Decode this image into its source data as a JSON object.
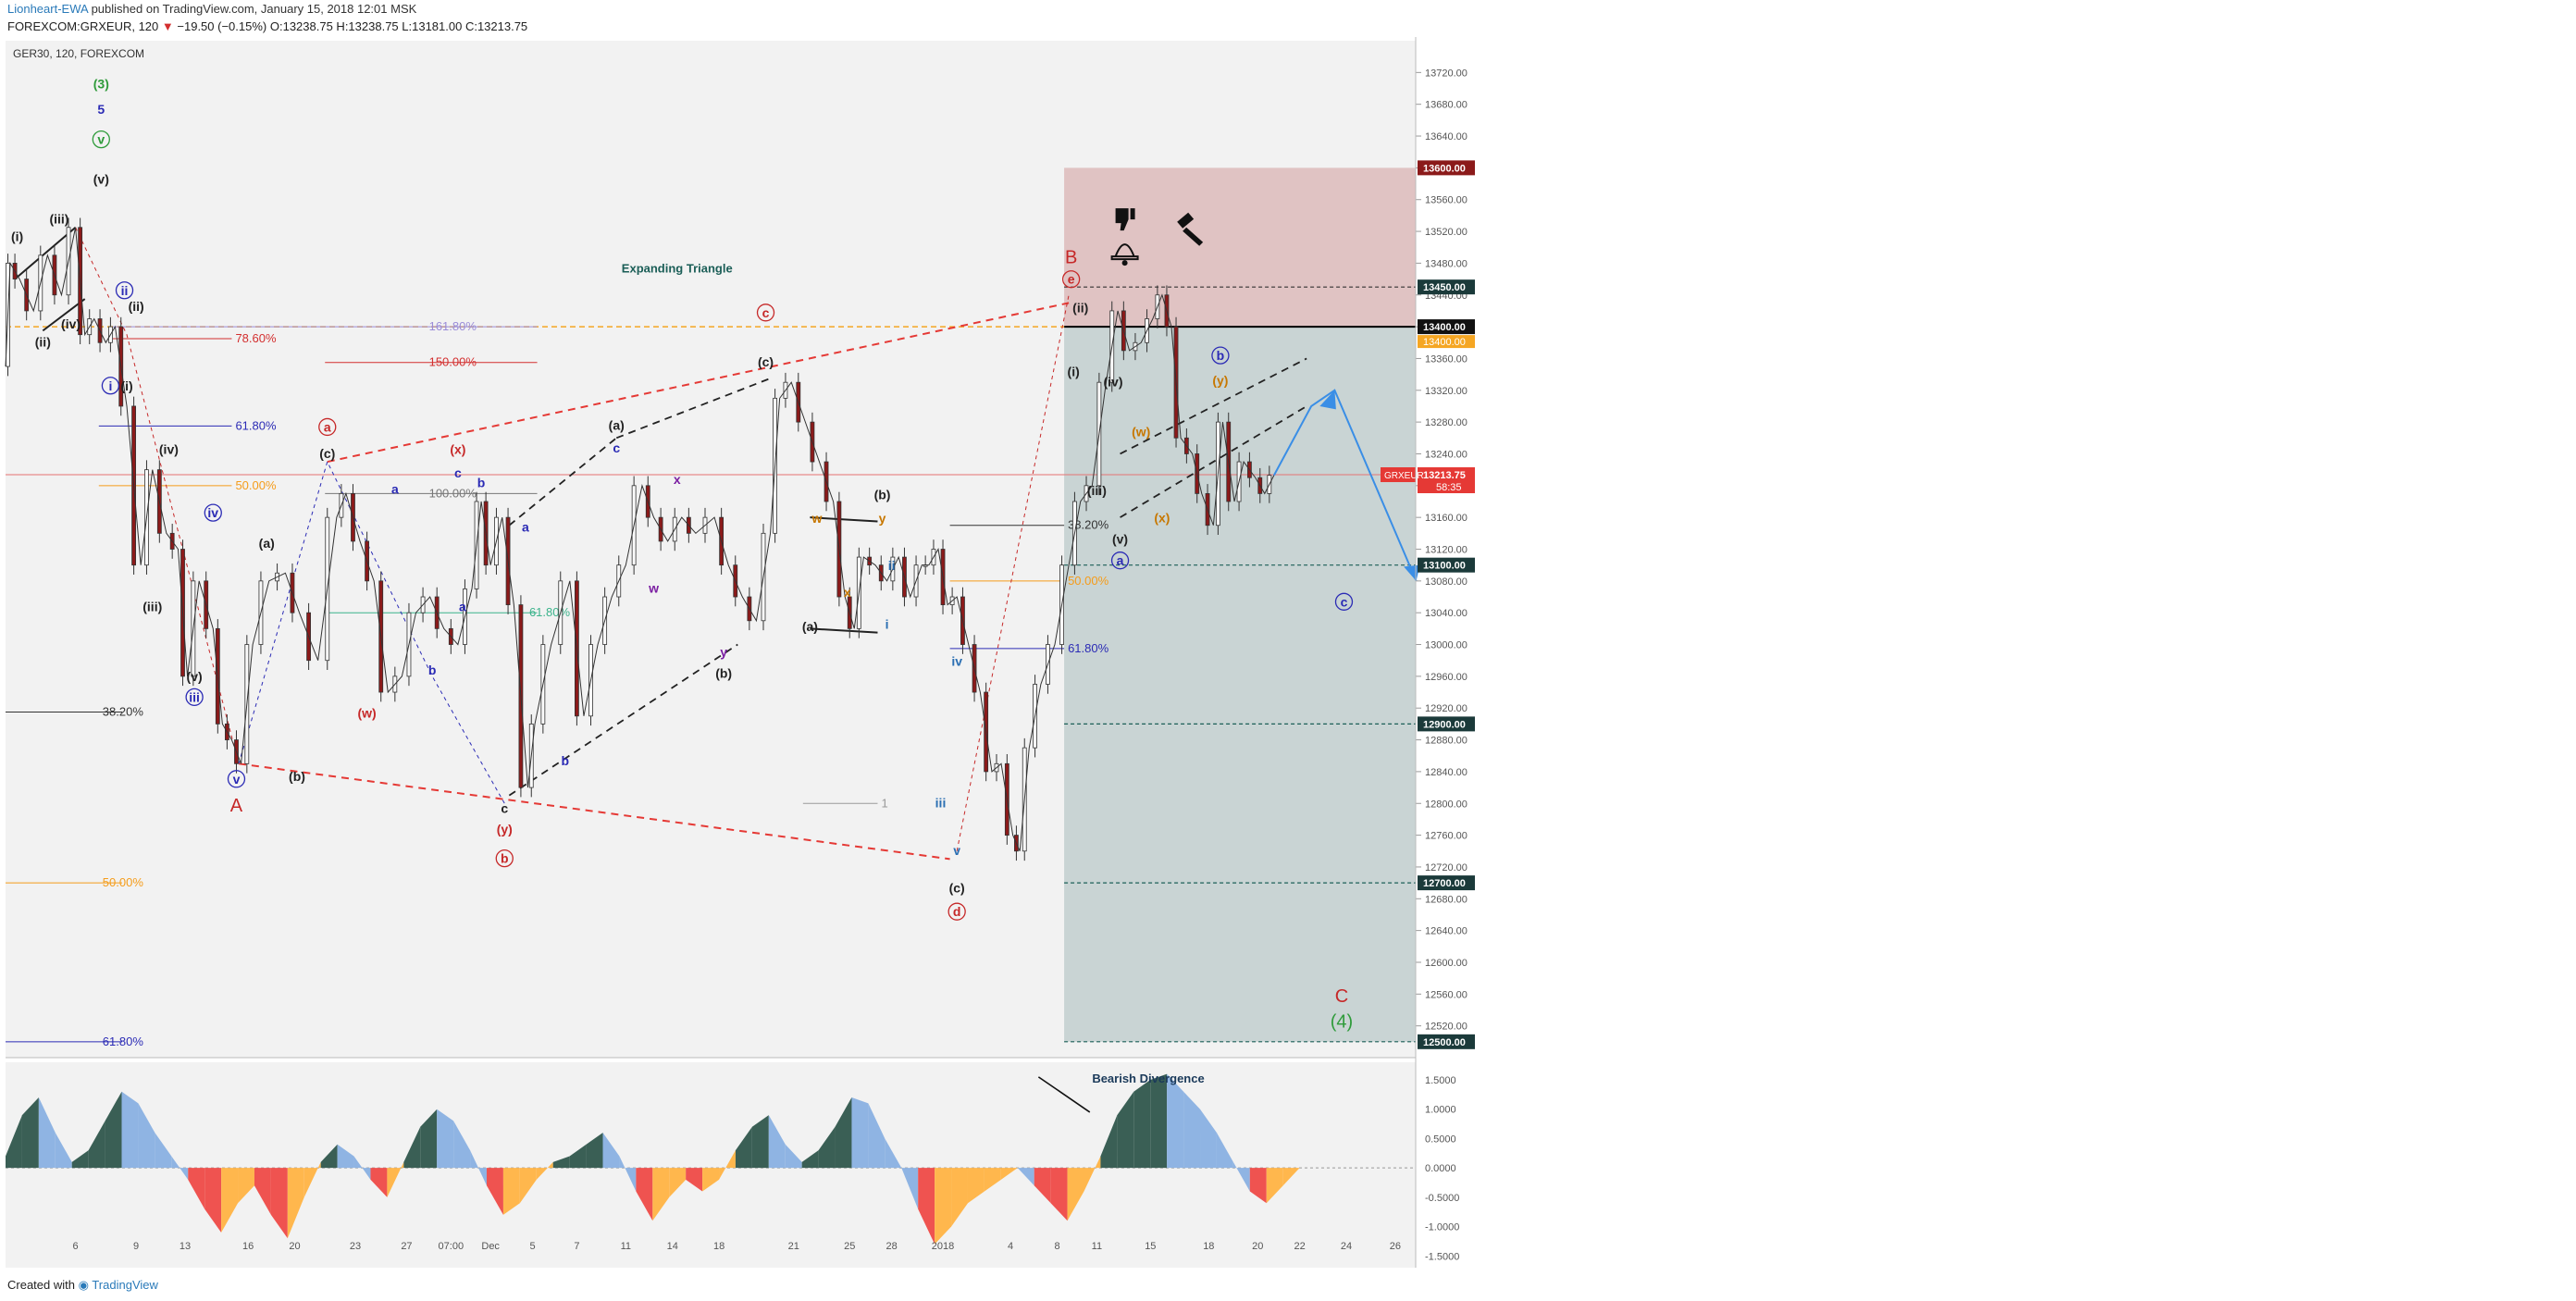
{
  "header": {
    "author": "Lionheart-EWA",
    "published": "published on TradingView.com, January 15, 2018 12:01 MSK",
    "symbol_line": "FOREXCOM:GRXEUR, 120",
    "change": "−19.50 (−0.15%)",
    "ohlc": "O:13238.75 H:13238.75 L:13181.00 C:13213.75"
  },
  "chart_title": "GER30, 120, FOREXCOM",
  "footer": {
    "created_with": "Created with",
    "brand": "TradingView"
  },
  "colors": {
    "background": "#f2f2f2",
    "sell_zone": "#e0c3c3",
    "target_zone": "#c9d4d4",
    "price_tag": "#e53935",
    "osc_green": "#3a5f55",
    "osc_blue": "#8fb4e3",
    "osc_red": "#ef5350",
    "osc_orange": "#ffb74d"
  },
  "icons": [
    "thumbs-down-icon",
    "gavel-icon",
    "bell-icon"
  ],
  "annotations": {
    "expanding_triangle": "Expanding Triangle",
    "bearish_divergence": "Bearish Divergence"
  },
  "chart_data": [
    {
      "type": "line",
      "subtype": "candlestick",
      "title": "GER30, 120, FOREXCOM",
      "y_axis": {
        "ylim": [
          12480,
          13760
        ],
        "ticks": [
          "13720.00",
          "13680.00",
          "13640.00",
          "13600.00",
          "13560.00",
          "13520.00",
          "13480.00",
          "13440.00",
          "13400.00",
          "13360.00",
          "13320.00",
          "13280.00",
          "13240.00",
          "13200.00",
          "13160.00",
          "13120.00",
          "13080.00",
          "13040.00",
          "13000.00",
          "12960.00",
          "12920.00",
          "12880.00",
          "12840.00",
          "12800.00",
          "12760.00",
          "12720.00",
          "12680.00",
          "12640.00",
          "12600.00",
          "12560.00",
          "12520.00"
        ],
        "labeled_levels": [
          "13600.00",
          "13450.00",
          "13400.00",
          "13100.00",
          "12900.00",
          "12700.00",
          "12500.00"
        ],
        "current_price": "13213.75",
        "current_label": "GRXEUR",
        "countdown": "58:35"
      },
      "x_axis": {
        "ticks": [
          "6",
          "9",
          "13",
          "16",
          "20",
          "23",
          "27",
          "07:00",
          "Dec",
          "5",
          "7",
          "11",
          "14",
          "18",
          "21",
          "25",
          "28",
          "2018",
          "4",
          "8",
          "11",
          "15",
          "18",
          "20",
          "22",
          "24",
          "26"
        ]
      },
      "fib_labels": [
        "161.80%",
        "78.60%",
        "150.00%",
        "61.80%",
        "50.00%",
        "100.00%",
        "61.80%",
        "38.20%",
        "50.00%",
        "38.20%",
        "50.00%",
        "61.80%",
        "61.80%",
        "1"
      ],
      "price_path": [
        [
          0,
          13350
        ],
        [
          0.2,
          13480
        ],
        [
          0.6,
          13460
        ],
        [
          1.2,
          13420
        ],
        [
          1.8,
          13490
        ],
        [
          2.4,
          13440
        ],
        [
          3.0,
          13525
        ],
        [
          3.4,
          13390
        ],
        [
          3.8,
          13410
        ],
        [
          4.3,
          13380
        ],
        [
          4.7,
          13400
        ],
        [
          5.2,
          13300
        ],
        [
          5.8,
          13100
        ],
        [
          6.3,
          13220
        ],
        [
          6.9,
          13140
        ],
        [
          7.4,
          13120
        ],
        [
          7.8,
          12960
        ],
        [
          8.3,
          13080
        ],
        [
          8.9,
          13020
        ],
        [
          9.3,
          12900
        ],
        [
          9.7,
          12880
        ],
        [
          10.1,
          12850
        ],
        [
          10.6,
          13000
        ],
        [
          11.3,
          13080
        ],
        [
          12.0,
          13090
        ],
        [
          12.6,
          13040
        ],
        [
          13.4,
          12980
        ],
        [
          14.2,
          13160
        ],
        [
          14.6,
          13190
        ],
        [
          15.2,
          13130
        ],
        [
          15.8,
          13080
        ],
        [
          16.4,
          12940
        ],
        [
          17.0,
          12960
        ],
        [
          17.6,
          13040
        ],
        [
          18.2,
          13060
        ],
        [
          18.8,
          13020
        ],
        [
          19.4,
          13000
        ],
        [
          20.0,
          13070
        ],
        [
          20.4,
          13180
        ],
        [
          20.8,
          13100
        ],
        [
          21.3,
          13160
        ],
        [
          21.8,
          13050
        ],
        [
          22.4,
          12820
        ],
        [
          22.7,
          12900
        ],
        [
          23.4,
          13000
        ],
        [
          24.2,
          13080
        ],
        [
          24.8,
          12910
        ],
        [
          25.4,
          13000
        ],
        [
          26.0,
          13060
        ],
        [
          26.6,
          13100
        ],
        [
          27.3,
          13200
        ],
        [
          27.8,
          13160
        ],
        [
          28.4,
          13130
        ],
        [
          29.0,
          13160
        ],
        [
          29.6,
          13140
        ],
        [
          30.4,
          13160
        ],
        [
          31.0,
          13100
        ],
        [
          31.6,
          13060
        ],
        [
          32.2,
          13030
        ],
        [
          32.8,
          13140
        ],
        [
          33.2,
          13310
        ],
        [
          33.7,
          13330
        ],
        [
          34.3,
          13280
        ],
        [
          34.9,
          13230
        ],
        [
          35.5,
          13180
        ],
        [
          36.0,
          13060
        ],
        [
          36.4,
          13020
        ],
        [
          36.8,
          13110
        ],
        [
          37.3,
          13100
        ],
        [
          37.8,
          13080
        ],
        [
          38.3,
          13110
        ],
        [
          38.8,
          13060
        ],
        [
          39.3,
          13100
        ],
        [
          39.6,
          13100
        ],
        [
          40.0,
          13120
        ],
        [
          40.4,
          13050
        ],
        [
          40.8,
          13060
        ],
        [
          41.3,
          13000
        ],
        [
          41.8,
          12940
        ],
        [
          42.3,
          12840
        ],
        [
          42.7,
          12850
        ],
        [
          43.2,
          12760
        ],
        [
          43.5,
          12740
        ],
        [
          43.9,
          12870
        ],
        [
          44.4,
          12950
        ],
        [
          45.0,
          13000
        ],
        [
          45.6,
          13100
        ],
        [
          46.1,
          13180
        ],
        [
          46.6,
          13200
        ],
        [
          47.2,
          13330
        ],
        [
          47.7,
          13420
        ],
        [
          48.2,
          13370
        ],
        [
          48.7,
          13380
        ],
        [
          49.2,
          13410
        ],
        [
          49.6,
          13440
        ],
        [
          50.0,
          13400
        ],
        [
          50.4,
          13260
        ],
        [
          50.9,
          13240
        ],
        [
          51.3,
          13190
        ],
        [
          51.8,
          13150
        ],
        [
          52.2,
          13280
        ],
        [
          52.7,
          13180
        ],
        [
          53.1,
          13230
        ],
        [
          53.6,
          13210
        ],
        [
          54.0,
          13190
        ],
        [
          54.4,
          13213
        ]
      ],
      "projection": [
        [
          54.4,
          13213
        ],
        [
          56.0,
          13300
        ],
        [
          57.0,
          13320
        ],
        [
          60.5,
          13080
        ]
      ],
      "wave_labels": [
        {
          "t": "(3)",
          "x": 4.1,
          "y": 13700,
          "c": "#2e9b3a"
        },
        {
          "t": "5",
          "x": 4.1,
          "y": 13668,
          "c": "#2b2bb5"
        },
        {
          "t": "v",
          "x": 4.1,
          "y": 13630,
          "c": "#2e9b3a",
          "circle": true
        },
        {
          "t": "(v)",
          "x": 4.1,
          "y": 13580,
          "c": "#222"
        },
        {
          "t": "(i)",
          "x": 0.5,
          "y": 13508,
          "c": "#222"
        },
        {
          "t": "(iii)",
          "x": 2.3,
          "y": 13530,
          "c": "#222"
        },
        {
          "t": "(ii)",
          "x": 1.6,
          "y": 13375,
          "c": "#222"
        },
        {
          "t": "(iv)",
          "x": 2.8,
          "y": 13398,
          "c": "#222"
        },
        {
          "t": "ii",
          "x": 5.1,
          "y": 13440,
          "c": "#2b2bb5",
          "circle": true
        },
        {
          "t": "(ii)",
          "x": 5.6,
          "y": 13420,
          "c": "#222"
        },
        {
          "t": "i",
          "x": 4.5,
          "y": 13320,
          "c": "#2b2bb5",
          "circle": true
        },
        {
          "t": "(i)",
          "x": 5.2,
          "y": 13320,
          "c": "#222"
        },
        {
          "t": "(iv)",
          "x": 7.0,
          "y": 13240,
          "c": "#222"
        },
        {
          "t": "iv",
          "x": 8.9,
          "y": 13160,
          "c": "#2b2bb5",
          "circle": true
        },
        {
          "t": "(iii)",
          "x": 6.3,
          "y": 13042,
          "c": "#222"
        },
        {
          "t": "(v)",
          "x": 8.1,
          "y": 12954,
          "c": "#222"
        },
        {
          "t": "iii",
          "x": 8.1,
          "y": 12928,
          "c": "#2b2bb5",
          "circle": true
        },
        {
          "t": "v",
          "x": 9.9,
          "y": 12825,
          "c": "#2b2bb5",
          "circle": true
        },
        {
          "t": "A",
          "x": 9.9,
          "y": 12790,
          "c": "#c62828",
          "big": true
        },
        {
          "t": "(a)",
          "x": 11.2,
          "y": 13122,
          "c": "#222"
        },
        {
          "t": "(b)",
          "x": 12.5,
          "y": 12828,
          "c": "#222"
        },
        {
          "t": "a",
          "x": 13.8,
          "y": 13268,
          "c": "#c62828",
          "circle": true
        },
        {
          "t": "(c)",
          "x": 13.8,
          "y": 13235,
          "c": "#222"
        },
        {
          "t": "a",
          "x": 16.7,
          "y": 13190,
          "c": "#2b2bb5"
        },
        {
          "t": "a",
          "x": 19.6,
          "y": 13042,
          "c": "#2b2bb5"
        },
        {
          "t": "b",
          "x": 18.3,
          "y": 12962,
          "c": "#2b2bb5"
        },
        {
          "t": "(w)",
          "x": 15.5,
          "y": 12908,
          "c": "#c62828"
        },
        {
          "t": "(x)",
          "x": 19.4,
          "y": 13240,
          "c": "#c62828"
        },
        {
          "t": "c",
          "x": 19.4,
          "y": 13210,
          "c": "#2b2bb5"
        },
        {
          "t": "b",
          "x": 20.4,
          "y": 13198,
          "c": "#2b2bb5"
        },
        {
          "t": "a",
          "x": 22.3,
          "y": 13142,
          "c": "#2b2bb5"
        },
        {
          "t": "c",
          "x": 21.4,
          "y": 12788,
          "c": "#222"
        },
        {
          "t": "(y)",
          "x": 21.4,
          "y": 12762,
          "c": "#c62828"
        },
        {
          "t": "b",
          "x": 21.4,
          "y": 12725,
          "c": "#c62828",
          "circle": true
        },
        {
          "t": "b",
          "x": 24.0,
          "y": 12848,
          "c": "#2b2bb5"
        },
        {
          "t": "(a)",
          "x": 26.2,
          "y": 13270,
          "c": "#222"
        },
        {
          "t": "c",
          "x": 26.2,
          "y": 13242,
          "c": "#2b2bb5"
        },
        {
          "t": "w",
          "x": 27.8,
          "y": 13065,
          "c": "#7b1fa2"
        },
        {
          "t": "x",
          "x": 28.8,
          "y": 13202,
          "c": "#7b1fa2"
        },
        {
          "t": "y",
          "x": 30.8,
          "y": 12985,
          "c": "#7b1fa2"
        },
        {
          "t": "(b)",
          "x": 30.8,
          "y": 12958,
          "c": "#222"
        },
        {
          "t": "c",
          "x": 32.6,
          "y": 13412,
          "c": "#c62828",
          "circle": true
        },
        {
          "t": "(c)",
          "x": 32.6,
          "y": 13350,
          "c": "#222"
        },
        {
          "t": "w",
          "x": 34.8,
          "y": 13153,
          "c": "#c77700"
        },
        {
          "t": "y",
          "x": 37.6,
          "y": 13153,
          "c": "#c77700"
        },
        {
          "t": "x",
          "x": 36.1,
          "y": 13060,
          "c": "#c77700"
        },
        {
          "t": "(a)",
          "x": 34.5,
          "y": 13017,
          "c": "#222"
        },
        {
          "t": "(b)",
          "x": 37.6,
          "y": 13183,
          "c": "#222"
        },
        {
          "t": "ii",
          "x": 38.0,
          "y": 13094,
          "c": "#2b6fb3"
        },
        {
          "t": "i",
          "x": 37.8,
          "y": 13020,
          "c": "#2b6fb3"
        },
        {
          "t": "iv",
          "x": 40.8,
          "y": 12973,
          "c": "#2b6fb3"
        },
        {
          "t": "iii",
          "x": 40.1,
          "y": 12795,
          "c": "#2b6fb3"
        },
        {
          "t": "v",
          "x": 40.8,
          "y": 12735,
          "c": "#2b6fb3"
        },
        {
          "t": "(c)",
          "x": 40.8,
          "y": 12688,
          "c": "#222"
        },
        {
          "t": "d",
          "x": 40.8,
          "y": 12658,
          "c": "#c62828",
          "circle": true
        },
        {
          "t": "B",
          "x": 45.7,
          "y": 13480,
          "c": "#c62828",
          "big": true
        },
        {
          "t": "e",
          "x": 45.7,
          "y": 13454,
          "c": "#c62828",
          "circle": true
        },
        {
          "t": "(ii)",
          "x": 46.1,
          "y": 13418,
          "c": "#222"
        },
        {
          "t": "(i)",
          "x": 45.8,
          "y": 13338,
          "c": "#222"
        },
        {
          "t": "(iv)",
          "x": 47.5,
          "y": 13325,
          "c": "#222"
        },
        {
          "t": "(iii)",
          "x": 46.8,
          "y": 13188,
          "c": "#222"
        },
        {
          "t": "(v)",
          "x": 47.8,
          "y": 13127,
          "c": "#222"
        },
        {
          "t": "a",
          "x": 47.8,
          "y": 13100,
          "c": "#2b2bb5",
          "circle": true
        },
        {
          "t": "(w)",
          "x": 48.7,
          "y": 13262,
          "c": "#c77700"
        },
        {
          "t": "(x)",
          "x": 49.6,
          "y": 13154,
          "c": "#c77700"
        },
        {
          "t": "(y)",
          "x": 52.1,
          "y": 13327,
          "c": "#c77700"
        },
        {
          "t": "b",
          "x": 52.1,
          "y": 13358,
          "c": "#2b2bb5",
          "circle": true
        },
        {
          "t": "c",
          "x": 57.4,
          "y": 13048,
          "c": "#2b2bb5",
          "circle": true
        },
        {
          "t": "C",
          "x": 57.3,
          "y": 12550,
          "c": "#c62828",
          "big": true
        },
        {
          "t": "(4)",
          "x": 57.3,
          "y": 12518,
          "c": "#2e9b3a",
          "big": true
        }
      ]
    },
    {
      "type": "area",
      "title": "",
      "y_axis": {
        "ylim": [
          -1.7,
          1.8
        ],
        "ticks": [
          "1.5000",
          "1.0000",
          "0.5000",
          "0.0000",
          "-0.5000",
          "-1.0000",
          "-1.5000"
        ]
      },
      "values": [
        0.2,
        0.9,
        1.2,
        0.6,
        0.1,
        0.3,
        0.8,
        1.3,
        1.1,
        0.6,
        0.2,
        -0.2,
        -0.7,
        -1.1,
        -0.6,
        -0.3,
        -0.8,
        -1.2,
        -0.5,
        0.1,
        0.4,
        0.2,
        -0.2,
        -0.5,
        0.1,
        0.7,
        1.0,
        0.8,
        0.3,
        -0.3,
        -0.8,
        -0.6,
        -0.2,
        0.1,
        0.2,
        0.4,
        0.6,
        0.2,
        -0.4,
        -0.9,
        -0.5,
        -0.2,
        -0.4,
        -0.2,
        0.3,
        0.7,
        0.9,
        0.4,
        0.1,
        0.3,
        0.7,
        1.2,
        1.1,
        0.5,
        0.0,
        -0.7,
        -1.3,
        -1.0,
        -0.6,
        -0.4,
        -0.2,
        0.0,
        -0.3,
        -0.6,
        -0.9,
        -0.4,
        0.2,
        0.9,
        1.3,
        1.5,
        1.6,
        1.3,
        1.0,
        0.6,
        0.1,
        -0.4,
        -0.6,
        -0.3,
        0.0
      ]
    }
  ]
}
